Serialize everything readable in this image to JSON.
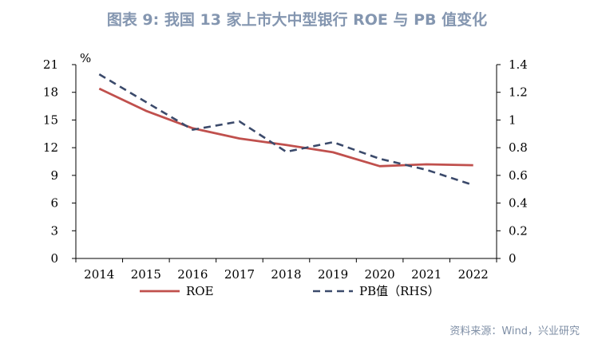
{
  "title": "图表 9:  我国 13 家上市大中型银行 ROE 与 PB 值变化",
  "source": "资料来源：Wind，兴业研究",
  "chart_data": {
    "type": "line",
    "x": [
      "2014",
      "2015",
      "2016",
      "2017",
      "2018",
      "2019",
      "2020",
      "2021",
      "2022"
    ],
    "y_left_unit": "%",
    "y_left_ticks": [
      0,
      3,
      6,
      9,
      12,
      15,
      18,
      21
    ],
    "y_left_lim": [
      0,
      21
    ],
    "y_right_ticks": [
      0,
      0.2,
      0.4,
      0.6,
      0.8,
      1,
      1.2,
      1.4
    ],
    "y_right_lim": [
      0,
      1.4
    ],
    "series": [
      {
        "name": "ROE",
        "axis": "left",
        "style": "solid",
        "color": "#c0504d",
        "values": [
          18.4,
          16.0,
          14.1,
          13.0,
          12.3,
          11.5,
          10.0,
          10.2,
          10.1
        ]
      },
      {
        "name": "PB值（RHS）",
        "axis": "right",
        "style": "dashed",
        "color": "#3b4a6b",
        "values": [
          1.33,
          1.13,
          0.93,
          0.99,
          0.77,
          0.84,
          0.72,
          0.64,
          0.53
        ]
      }
    ],
    "legend_position": "bottom",
    "grid": false
  }
}
